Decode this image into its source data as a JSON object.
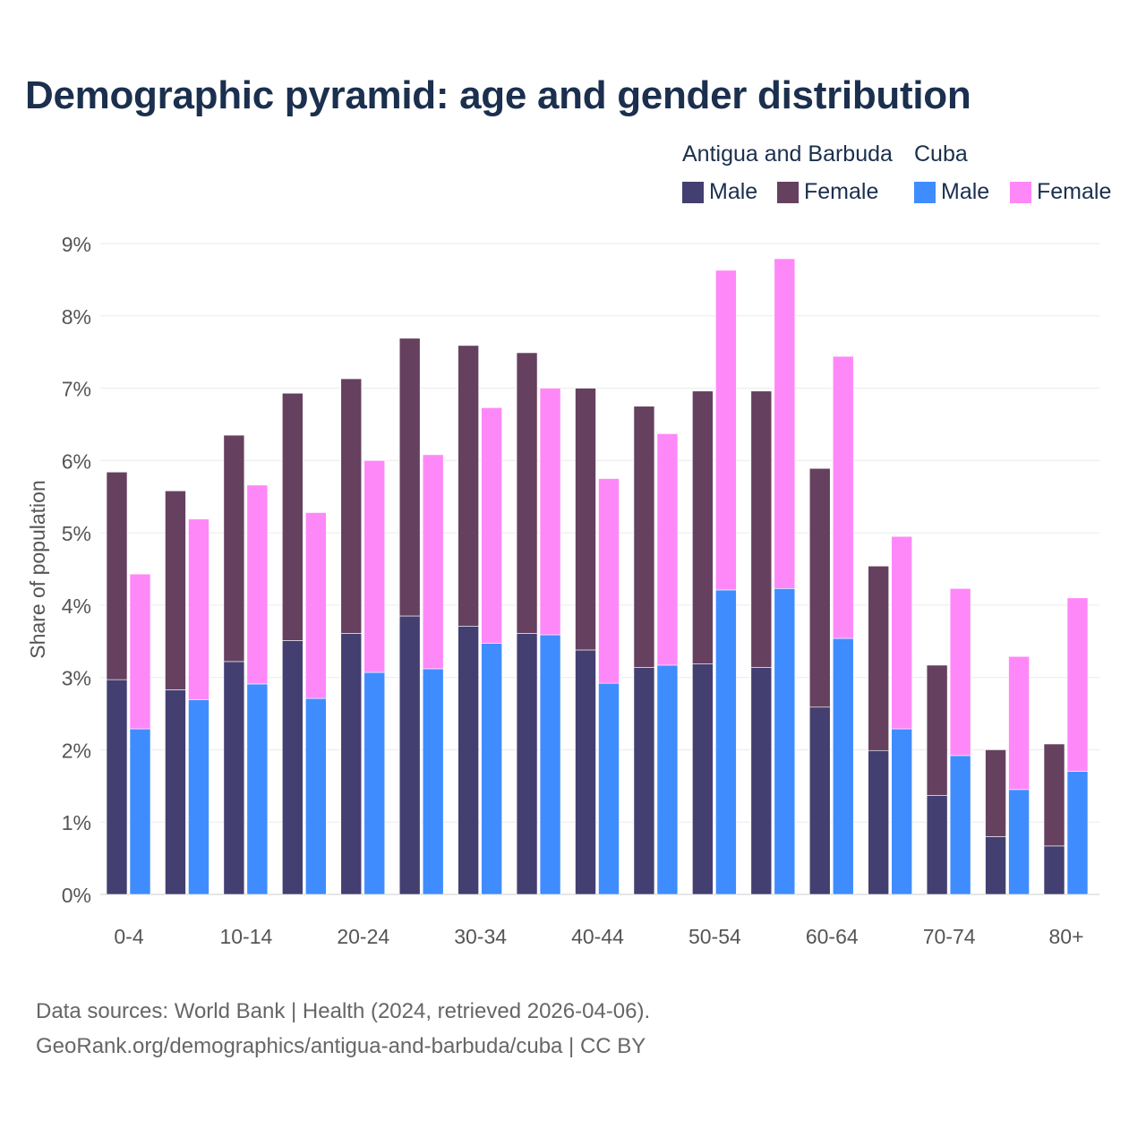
{
  "title": "Demographic pyramid: age and gender distribution",
  "legend": {
    "groups": [
      {
        "name": "Antigua and Barbuda",
        "items": [
          {
            "label": "Male",
            "color": "#433f70"
          },
          {
            "label": "Female",
            "color": "#66405f"
          }
        ]
      },
      {
        "name": "Cuba",
        "items": [
          {
            "label": "Male",
            "color": "#3f8cff"
          },
          {
            "label": "Female",
            "color": "#ff88f8"
          }
        ]
      }
    ]
  },
  "footer": {
    "line1": "Data sources: World Bank | Health (2024, retrieved 2026-04-06).",
    "line2": "GeoRank.org/demographics/antigua-and-barbuda/cuba | CC BY"
  },
  "chart_data": {
    "type": "bar",
    "stacked": true,
    "title": "Demographic pyramid: age and gender distribution",
    "xlabel": "",
    "ylabel": "Share of population",
    "ylim": [
      0,
      9
    ],
    "yticks": [
      "0%",
      "1%",
      "2%",
      "3%",
      "4%",
      "5%",
      "6%",
      "7%",
      "8%",
      "9%"
    ],
    "grid": true,
    "legend_position": "top-right",
    "categories": [
      "0-4",
      "5-9",
      "10-14",
      "15-19",
      "20-24",
      "25-29",
      "30-34",
      "35-39",
      "40-44",
      "45-49",
      "50-54",
      "55-59",
      "60-64",
      "65-69",
      "70-74",
      "75-79",
      "80+"
    ],
    "tick_labels": [
      "0-4",
      "10-14",
      "20-24",
      "30-34",
      "40-44",
      "50-54",
      "60-64",
      "70-74",
      "80+"
    ],
    "series": [
      {
        "name": "Antigua and Barbuda Male",
        "country": "Antigua and Barbuda",
        "stack": "A",
        "values": [
          2.97,
          2.83,
          3.22,
          3.51,
          3.61,
          3.85,
          3.71,
          3.61,
          3.38,
          3.14,
          3.19,
          3.14,
          2.59,
          1.99,
          1.37,
          0.8,
          0.67
        ]
      },
      {
        "name": "Antigua and Barbuda Female",
        "country": "Antigua and Barbuda",
        "stack": "A",
        "values": [
          2.87,
          2.75,
          3.13,
          3.42,
          3.52,
          3.84,
          3.88,
          3.88,
          3.62,
          3.61,
          3.77,
          3.82,
          3.3,
          2.55,
          1.8,
          1.2,
          1.41
        ]
      },
      {
        "name": "Cuba Male",
        "country": "Cuba",
        "stack": "C",
        "values": [
          2.29,
          2.69,
          2.91,
          2.71,
          3.07,
          3.12,
          3.47,
          3.59,
          2.92,
          3.17,
          4.21,
          4.23,
          3.54,
          2.29,
          1.92,
          1.45,
          1.7
        ]
      },
      {
        "name": "Cuba Female",
        "country": "Cuba",
        "stack": "C",
        "values": [
          2.14,
          2.5,
          2.75,
          2.57,
          2.93,
          2.96,
          3.26,
          3.41,
          2.83,
          3.2,
          4.42,
          4.56,
          3.9,
          2.66,
          2.31,
          1.84,
          2.4
        ]
      }
    ]
  }
}
